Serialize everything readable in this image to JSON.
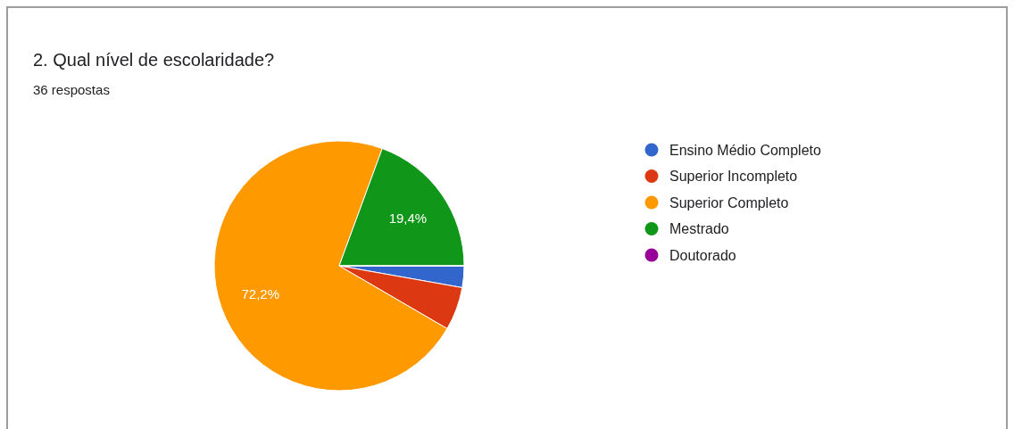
{
  "chart_data": {
    "type": "pie",
    "title": "2. Qual nível de escolaridade?",
    "subtitle": "36 respostas",
    "categories": [
      "Ensino Médio Completo",
      "Superior Incompleto",
      "Superior Completo",
      "Mestrado",
      "Doutorado"
    ],
    "values": [
      2.8,
      5.6,
      72.2,
      19.4,
      0
    ],
    "colors": [
      "#3366cc",
      "#dc3912",
      "#ff9900",
      "#109618",
      "#990099"
    ],
    "value_labels": [
      null,
      null,
      "72,2%",
      "19,4%",
      null
    ],
    "legend": "right"
  }
}
